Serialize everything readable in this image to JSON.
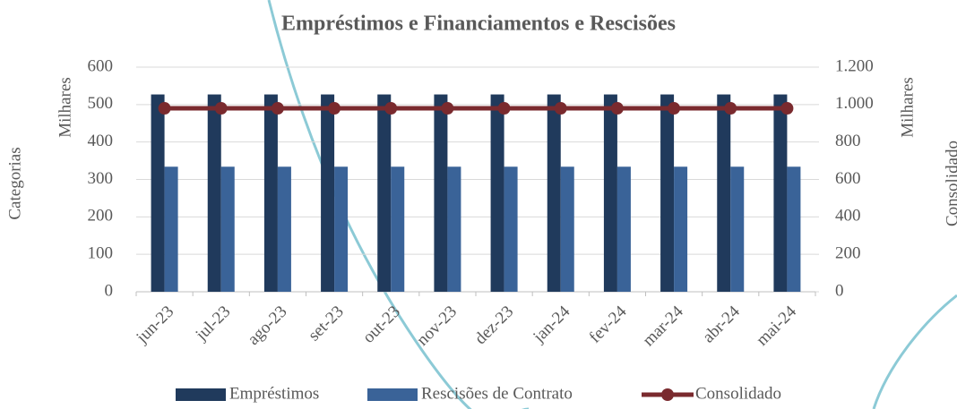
{
  "chart_data": {
    "type": "bar",
    "title": "Empréstimos e Financiamentos e Rescisões",
    "categories": [
      "jun-23",
      "jul-23",
      "ago-23",
      "set-23",
      "out-23",
      "nov-23",
      "dez-23",
      "jan-24",
      "fev-24",
      "mar-24",
      "abr-24",
      "mai-24"
    ],
    "series": [
      {
        "name": "Empréstimos",
        "type": "bar",
        "color": "#203a5c",
        "values": [
          527,
          527,
          527,
          527,
          527,
          527,
          527,
          527,
          527,
          527,
          527,
          527
        ]
      },
      {
        "name": "Rescisões de Contrato",
        "type": "bar",
        "color": "#3a6398",
        "values": [
          334,
          334,
          334,
          334,
          334,
          334,
          334,
          334,
          334,
          334,
          334,
          334
        ]
      },
      {
        "name": "Consolidado",
        "type": "line",
        "axis": "y2",
        "color": "#7a2a2e",
        "values": [
          980,
          980,
          980,
          980,
          980,
          980,
          980,
          980,
          980,
          980,
          980,
          980
        ]
      }
    ],
    "ylim": [
      0,
      600
    ],
    "yticks": [
      0,
      100,
      200,
      300,
      400,
      500,
      600
    ],
    "y2lim": [
      0,
      1200
    ],
    "y2ticks": [
      0,
      200,
      400,
      600,
      800,
      {
        "value": 1000,
        "label": "1.000"
      },
      {
        "value": 1200,
        "label": "1.200"
      }
    ],
    "y_unit_label": "Milhares",
    "y2_unit_label": "Milhares",
    "y_label": "Categorias",
    "y2_label": "Consolidado",
    "grid": true,
    "legend": "bottom"
  }
}
